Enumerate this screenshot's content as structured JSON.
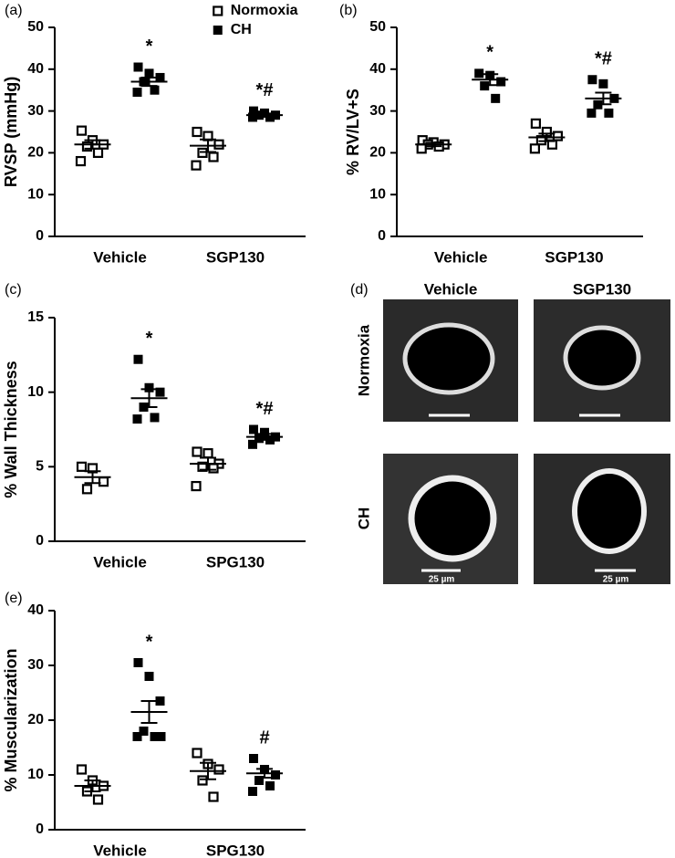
{
  "chart_data": [
    {
      "type": "dot",
      "panel_label": "(a)",
      "y_label": "RVSP (mmHg)",
      "categories": [
        "Vehicle",
        "SGP130"
      ],
      "ylim": [
        0,
        50
      ],
      "yticks": [
        0,
        10,
        20,
        30,
        40,
        50
      ],
      "legend": true,
      "series": [
        {
          "name": "Normoxia",
          "color": "#000000",
          "marker": "open-square",
          "values": [
            [
              25.3,
              23,
              22,
              21.5,
              20,
              18
            ],
            [
              25,
              24,
              22,
              20,
              19,
              17
            ]
          ],
          "means": [
            22,
            21.7
          ],
          "sems": [
            1,
            1.5
          ]
        },
        {
          "name": "CH",
          "color": "#000000",
          "marker": "filled-square",
          "values": [
            [
              40.5,
              39,
              38,
              37,
              35,
              34.5
            ],
            [
              30,
              29.5,
              29,
              29,
              28.5,
              28.5
            ]
          ],
          "means": [
            37,
            29
          ],
          "sems": [
            1,
            0.4
          ]
        }
      ],
      "annotations": [
        {
          "category": 0,
          "series": 1,
          "text": "*"
        },
        {
          "category": 1,
          "series": 1,
          "text": "*#"
        }
      ]
    },
    {
      "type": "dot",
      "panel_label": "(b)",
      "y_label": "% RV/LV+S",
      "categories": [
        "Vehicle",
        "SGP130"
      ],
      "ylim": [
        0,
        50
      ],
      "yticks": [
        0,
        10,
        20,
        30,
        40,
        50
      ],
      "legend": false,
      "series": [
        {
          "name": "Normoxia",
          "color": "#000000",
          "marker": "open-square",
          "values": [
            [
              23,
              22.5,
              22,
              22,
              21.5,
              21
            ],
            [
              27,
              25,
              24,
              23,
              22,
              21
            ]
          ],
          "means": [
            22,
            23.7
          ],
          "sems": [
            0.4,
            0.9
          ]
        },
        {
          "name": "CH",
          "color": "#000000",
          "marker": "filled-square",
          "values": [
            [
              39,
              38.5,
              37,
              36,
              33
            ],
            [
              37.5,
              36.5,
              33,
              31.5,
              29.5,
              29.5
            ]
          ],
          "means": [
            37.5,
            33
          ],
          "sems": [
            1.3,
            1.4
          ]
        }
      ],
      "annotations": [
        {
          "category": 0,
          "series": 1,
          "text": "*"
        },
        {
          "category": 1,
          "series": 1,
          "text": "*#"
        }
      ]
    },
    {
      "type": "dot",
      "panel_label": "(c)",
      "y_label": "% Wall Thickness",
      "categories": [
        "Vehicle",
        "SPG130"
      ],
      "ylim": [
        0,
        15
      ],
      "yticks": [
        0,
        5,
        10,
        15
      ],
      "legend": false,
      "series": [
        {
          "name": "Normoxia",
          "color": "#000000",
          "marker": "open-square",
          "values": [
            [
              5,
              4.9,
              4,
              3.5
            ],
            [
              6,
              5.9,
              5.2,
              5,
              4.9,
              3.7
            ]
          ],
          "means": [
            4.3,
            5.2
          ],
          "sems": [
            0.4,
            0.4
          ]
        },
        {
          "name": "CH",
          "color": "#000000",
          "marker": "filled-square",
          "values": [
            [
              12.2,
              10.3,
              10,
              9,
              8.3,
              8.2
            ],
            [
              7.5,
              7.3,
              7,
              6.9,
              6.8,
              6.5
            ]
          ],
          "means": [
            9.6,
            7
          ],
          "sems": [
            0.6,
            0.2
          ]
        }
      ],
      "annotations": [
        {
          "category": 0,
          "series": 1,
          "text": "*"
        },
        {
          "category": 1,
          "series": 1,
          "text": "*#"
        }
      ]
    },
    {
      "type": "dot",
      "panel_label": "(e)",
      "y_label": "% Muscularization",
      "categories": [
        "Vehicle",
        "SPG130"
      ],
      "ylim": [
        0,
        40
      ],
      "yticks": [
        0,
        10,
        20,
        30,
        40
      ],
      "legend": false,
      "series": [
        {
          "name": "Normoxia",
          "color": "#000000",
          "marker": "open-square",
          "values": [
            [
              11,
              9,
              8,
              7,
              5.5
            ],
            [
              14,
              12,
              11,
              9,
              6
            ]
          ],
          "means": [
            8,
            10.7
          ],
          "sems": [
            1,
            1.5
          ]
        },
        {
          "name": "CH",
          "color": "#000000",
          "marker": "filled-square",
          "values": [
            [
              30.5,
              28,
              23.5,
              18,
              17,
              17,
              17
            ],
            [
              13,
              11,
              10,
              9,
              8,
              7
            ]
          ],
          "means": [
            21.5,
            10.3
          ],
          "sems": [
            2,
            0.8
          ]
        }
      ],
      "annotations": [
        {
          "category": 0,
          "series": 1,
          "text": "*"
        },
        {
          "category": 1,
          "series": 1,
          "text": "#"
        }
      ]
    }
  ],
  "image_panel": {
    "label": "(d)",
    "columns": [
      "Vehicle",
      "SGP130"
    ],
    "rows": [
      "Normoxia",
      "CH"
    ],
    "scale_bar": "25 µm"
  }
}
